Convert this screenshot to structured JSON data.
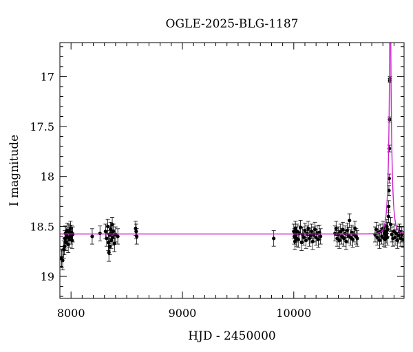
{
  "chart_data": {
    "type": "scatter",
    "title": "OGLE-2025-BLG-1187",
    "xlabel": "HJD - 2450000",
    "ylabel": "I magnitude",
    "xlim": [
      7900,
      10990
    ],
    "ylim": [
      19.22,
      16.66
    ],
    "y_inverted": true,
    "xticks": [
      8000,
      9000,
      10000
    ],
    "yticks": [
      17,
      17.5,
      18,
      18.5,
      19
    ],
    "grid": false,
    "colors": {
      "points": "#000000",
      "model": "#cc22cc",
      "axes": "#000000"
    },
    "series": [
      {
        "points": [
          [
            7915,
            18.82
          ],
          [
            7925,
            18.84
          ],
          [
            7935,
            18.73
          ],
          [
            7940,
            18.7
          ],
          [
            7945,
            18.62
          ],
          [
            7950,
            18.57
          ],
          [
            7955,
            18.66
          ],
          [
            7960,
            18.59
          ],
          [
            7965,
            18.54
          ],
          [
            7970,
            18.61
          ],
          [
            7975,
            18.68
          ],
          [
            7980,
            18.55
          ],
          [
            7985,
            18.63
          ],
          [
            7990,
            18.57
          ],
          [
            7995,
            18.52
          ],
          [
            8000,
            18.6
          ],
          [
            8005,
            18.56
          ],
          [
            8010,
            18.64
          ],
          [
            8015,
            18.58
          ],
          [
            8190,
            18.6
          ],
          [
            8260,
            18.57
          ],
          [
            8310,
            18.55
          ],
          [
            8320,
            18.62
          ],
          [
            8330,
            18.5
          ],
          [
            8335,
            18.66
          ],
          [
            8340,
            18.76
          ],
          [
            8345,
            18.58
          ],
          [
            8350,
            18.7
          ],
          [
            8355,
            18.53
          ],
          [
            8360,
            18.64
          ],
          [
            8365,
            18.57
          ],
          [
            8370,
            18.48
          ],
          [
            8375,
            18.61
          ],
          [
            8380,
            18.55
          ],
          [
            8390,
            18.67
          ],
          [
            8400,
            18.58
          ],
          [
            8420,
            18.6
          ],
          [
            8580,
            18.52
          ],
          [
            8585,
            18.55
          ],
          [
            8590,
            18.6
          ],
          [
            9820,
            18.62
          ],
          [
            10000,
            18.55
          ],
          [
            10005,
            18.6
          ],
          [
            10010,
            18.65
          ],
          [
            10015,
            18.52
          ],
          [
            10020,
            18.58
          ],
          [
            10025,
            18.62
          ],
          [
            10030,
            18.55
          ],
          [
            10040,
            18.63
          ],
          [
            10050,
            18.57
          ],
          [
            10060,
            18.51
          ],
          [
            10070,
            18.66
          ],
          [
            10080,
            18.58
          ],
          [
            10090,
            18.61
          ],
          [
            10100,
            18.54
          ],
          [
            10110,
            18.64
          ],
          [
            10120,
            18.57
          ],
          [
            10130,
            18.52
          ],
          [
            10140,
            18.62
          ],
          [
            10150,
            18.59
          ],
          [
            10160,
            18.55
          ],
          [
            10170,
            18.65
          ],
          [
            10180,
            18.58
          ],
          [
            10190,
            18.53
          ],
          [
            10200,
            18.61
          ],
          [
            10210,
            18.57
          ],
          [
            10220,
            18.63
          ],
          [
            10230,
            18.56
          ],
          [
            10240,
            18.6
          ],
          [
            10370,
            18.57
          ],
          [
            10380,
            18.52
          ],
          [
            10390,
            18.62
          ],
          [
            10400,
            18.58
          ],
          [
            10410,
            18.64
          ],
          [
            10420,
            18.55
          ],
          [
            10430,
            18.6
          ],
          [
            10440,
            18.53
          ],
          [
            10450,
            18.62
          ],
          [
            10460,
            18.57
          ],
          [
            10470,
            18.65
          ],
          [
            10480,
            18.54
          ],
          [
            10490,
            18.59
          ],
          [
            10500,
            18.44
          ],
          [
            10510,
            18.61
          ],
          [
            10520,
            18.56
          ],
          [
            10530,
            18.63
          ],
          [
            10540,
            18.58
          ],
          [
            10550,
            18.52
          ],
          [
            10560,
            18.6
          ],
          [
            10570,
            18.62
          ],
          [
            10730,
            18.58
          ],
          [
            10740,
            18.53
          ],
          [
            10750,
            18.61
          ],
          [
            10760,
            18.56
          ],
          [
            10770,
            18.64
          ],
          [
            10780,
            18.55
          ],
          [
            10790,
            18.6
          ],
          [
            10800,
            18.52
          ],
          [
            10810,
            18.62
          ],
          [
            10815,
            18.57
          ],
          [
            10820,
            18.63
          ],
          [
            10825,
            18.55
          ],
          [
            10830,
            18.59
          ],
          [
            10835,
            18.5
          ],
          [
            10840,
            18.61
          ],
          [
            10845,
            18.53
          ],
          [
            10850,
            18.4
          ],
          [
            10852,
            18.3
          ],
          [
            10854,
            18.14
          ],
          [
            10856,
            18.02
          ],
          [
            10858,
            17.72
          ],
          [
            10860,
            17.43
          ],
          [
            10862,
            17.04
          ],
          [
            10864,
            17.02
          ],
          [
            10870,
            18.48
          ],
          [
            10880,
            18.58
          ],
          [
            10890,
            18.62
          ],
          [
            10900,
            18.55
          ],
          [
            10910,
            18.61
          ],
          [
            10920,
            18.57
          ],
          [
            10930,
            18.64
          ],
          [
            10940,
            18.59
          ],
          [
            10950,
            18.55
          ],
          [
            10960,
            18.62
          ],
          [
            10970,
            18.58
          ],
          [
            10980,
            18.63
          ]
        ]
      }
    ],
    "model": {
      "baseline_mag": 18.575,
      "t0": 10866,
      "tE": 29,
      "u0": 5e-06
    }
  }
}
